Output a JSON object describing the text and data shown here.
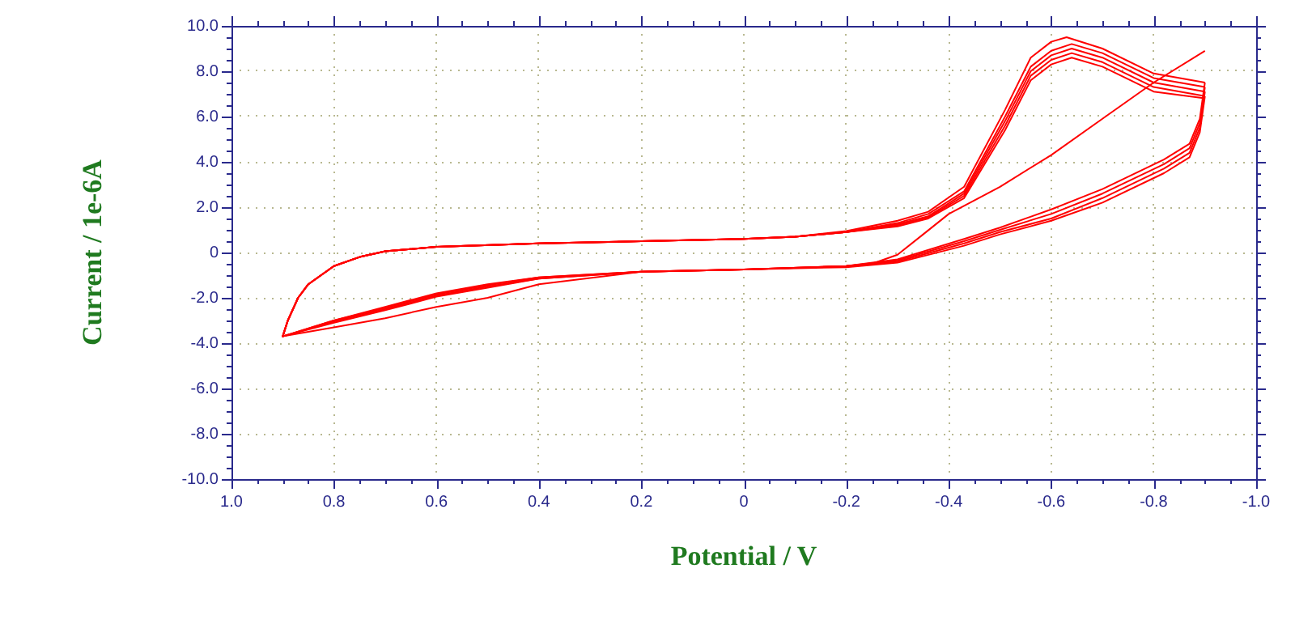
{
  "chart_data": {
    "type": "line",
    "xlabel": "Potential / V",
    "ylabel": "Current / 1e-6A",
    "xlim": [
      1.0,
      -1.0
    ],
    "ylim": [
      -10.0,
      10.0
    ],
    "xticks": [
      {
        "value": 1.0,
        "label": "1.0"
      },
      {
        "value": 0.95,
        "label": null
      },
      {
        "value": 0.9,
        "label": null
      },
      {
        "value": 0.85,
        "label": null
      },
      {
        "value": 0.8,
        "label": "0.8"
      },
      {
        "value": 0.75,
        "label": null
      },
      {
        "value": 0.7,
        "label": null
      },
      {
        "value": 0.65,
        "label": null
      },
      {
        "value": 0.6,
        "label": "0.6"
      },
      {
        "value": 0.55,
        "label": null
      },
      {
        "value": 0.5,
        "label": null
      },
      {
        "value": 0.45,
        "label": null
      },
      {
        "value": 0.4,
        "label": "0.4"
      },
      {
        "value": 0.35,
        "label": null
      },
      {
        "value": 0.3,
        "label": null
      },
      {
        "value": 0.25,
        "label": null
      },
      {
        "value": 0.2,
        "label": "0.2"
      },
      {
        "value": 0.15,
        "label": null
      },
      {
        "value": 0.1,
        "label": null
      },
      {
        "value": 0.05,
        "label": null
      },
      {
        "value": 0,
        "label": "0"
      },
      {
        "value": -0.05,
        "label": null
      },
      {
        "value": -0.1,
        "label": null
      },
      {
        "value": -0.15,
        "label": null
      },
      {
        "value": -0.2,
        "label": "-0.2"
      },
      {
        "value": -0.25,
        "label": null
      },
      {
        "value": -0.3,
        "label": null
      },
      {
        "value": -0.35,
        "label": null
      },
      {
        "value": -0.4,
        "label": "-0.4"
      },
      {
        "value": -0.45,
        "label": null
      },
      {
        "value": -0.5,
        "label": null
      },
      {
        "value": -0.55,
        "label": null
      },
      {
        "value": -0.6,
        "label": "-0.6"
      },
      {
        "value": -0.65,
        "label": null
      },
      {
        "value": -0.7,
        "label": null
      },
      {
        "value": -0.75,
        "label": null
      },
      {
        "value": -0.8,
        "label": "-0.8"
      },
      {
        "value": -0.85,
        "label": null
      },
      {
        "value": -0.9,
        "label": null
      },
      {
        "value": -0.95,
        "label": null
      },
      {
        "value": -1.0,
        "label": "-1.0"
      }
    ],
    "yticks": [
      {
        "value": -10,
        "label": "-10.0"
      },
      {
        "value": -9.5,
        "label": null
      },
      {
        "value": -9,
        "label": null
      },
      {
        "value": -8.5,
        "label": null
      },
      {
        "value": -8,
        "label": "-8.0"
      },
      {
        "value": -7.5,
        "label": null
      },
      {
        "value": -7,
        "label": null
      },
      {
        "value": -6.5,
        "label": null
      },
      {
        "value": -6,
        "label": "-6.0"
      },
      {
        "value": -5.5,
        "label": null
      },
      {
        "value": -5,
        "label": null
      },
      {
        "value": -4.5,
        "label": null
      },
      {
        "value": -4,
        "label": "-4.0"
      },
      {
        "value": -3.5,
        "label": null
      },
      {
        "value": -3,
        "label": null
      },
      {
        "value": -2.5,
        "label": null
      },
      {
        "value": -2,
        "label": "-2.0"
      },
      {
        "value": -1.5,
        "label": null
      },
      {
        "value": -1,
        "label": null
      },
      {
        "value": -0.5,
        "label": null
      },
      {
        "value": 0,
        "label": "0"
      },
      {
        "value": 0.5,
        "label": null
      },
      {
        "value": 1,
        "label": null
      },
      {
        "value": 1.5,
        "label": null
      },
      {
        "value": 2,
        "label": "2.0"
      },
      {
        "value": 2.5,
        "label": null
      },
      {
        "value": 3,
        "label": null
      },
      {
        "value": 3.5,
        "label": null
      },
      {
        "value": 4,
        "label": "4.0"
      },
      {
        "value": 4.5,
        "label": null
      },
      {
        "value": 5,
        "label": null
      },
      {
        "value": 5.5,
        "label": null
      },
      {
        "value": 6,
        "label": "6.0"
      },
      {
        "value": 6.5,
        "label": null
      },
      {
        "value": 7,
        "label": null
      },
      {
        "value": 7.5,
        "label": null
      },
      {
        "value": 8,
        "label": "8.0"
      },
      {
        "value": 8.5,
        "label": null
      },
      {
        "value": 9,
        "label": null
      },
      {
        "value": 9.5,
        "label": null
      },
      {
        "value": 10,
        "label": "10.0"
      }
    ],
    "grid": true,
    "legend": false,
    "marker": "none",
    "line_style": "solid",
    "series": [
      {
        "color": "#ff0000",
        "x": [
          -0.9,
          -0.8,
          -0.7,
          -0.6,
          -0.5,
          -0.45,
          -0.4,
          -0.35,
          -0.3,
          -0.25,
          -0.2,
          0,
          0.2,
          0.4,
          0.5,
          0.6,
          0.7,
          0.8,
          0.9,
          0.89,
          0.87,
          0.85,
          0.8,
          0.75,
          0.7,
          0.6,
          0.4,
          0.2,
          0,
          -0.1,
          -0.2,
          -0.3,
          -0.36,
          -0.43,
          -0.51,
          -0.56,
          -0.6,
          -0.63,
          -0.7,
          -0.8,
          -0.9
        ],
        "values": [
          8.9,
          7.5,
          5.9,
          4.3,
          2.9,
          2.3,
          1.7,
          0.8,
          -0.1,
          -0.5,
          -0.6,
          -0.75,
          -0.85,
          -1.4,
          -2.0,
          -2.4,
          -2.9,
          -3.3,
          -3.7,
          -3.0,
          -2.0,
          -1.4,
          -0.6,
          -0.2,
          0.05,
          0.25,
          0.4,
          0.5,
          0.6,
          0.7,
          0.95,
          1.4,
          1.8,
          2.9,
          6.3,
          8.6,
          9.3,
          9.5,
          9.0,
          7.9,
          7.5
        ]
      },
      {
        "color": "#ff0000",
        "x": [
          -0.9,
          -0.89,
          -0.87,
          -0.82,
          -0.7,
          -0.6,
          -0.5,
          -0.43,
          -0.3,
          -0.2,
          0,
          0.2,
          0.4,
          0.5,
          0.6,
          0.7,
          0.8,
          0.9,
          0.89,
          0.87,
          0.85,
          0.8,
          0.75,
          0.7,
          0.6,
          0.4,
          0.2,
          0,
          -0.1,
          -0.2,
          -0.3,
          -0.36,
          -0.43,
          -0.51,
          -0.56,
          -0.6,
          -0.64,
          -0.7,
          -0.8,
          -0.9
        ],
        "values": [
          7.5,
          5.9,
          4.8,
          4.1,
          2.8,
          1.9,
          1.1,
          0.6,
          -0.3,
          -0.6,
          -0.75,
          -0.85,
          -1.1,
          -1.4,
          -1.8,
          -2.4,
          -3.0,
          -3.7,
          -3.0,
          -2.0,
          -1.4,
          -0.6,
          -0.2,
          0.05,
          0.25,
          0.4,
          0.5,
          0.6,
          0.7,
          0.9,
          1.3,
          1.7,
          2.7,
          6.0,
          8.2,
          8.9,
          9.2,
          8.8,
          7.7,
          7.3
        ]
      },
      {
        "color": "#ff0000",
        "x": [
          -0.9,
          -0.89,
          -0.87,
          -0.82,
          -0.7,
          -0.6,
          -0.5,
          -0.43,
          -0.3,
          -0.2,
          0,
          0.2,
          0.4,
          0.5,
          0.6,
          0.7,
          0.8,
          0.9,
          0.89,
          0.87,
          0.85,
          0.8,
          0.75,
          0.7,
          0.6,
          0.4,
          0.2,
          0,
          -0.1,
          -0.2,
          -0.3,
          -0.36,
          -0.43,
          -0.51,
          -0.56,
          -0.6,
          -0.64,
          -0.7,
          -0.8,
          -0.9
        ],
        "values": [
          7.3,
          5.7,
          4.6,
          3.9,
          2.6,
          1.7,
          1.0,
          0.5,
          -0.35,
          -0.6,
          -0.75,
          -0.85,
          -1.1,
          -1.45,
          -1.85,
          -2.45,
          -3.0,
          -3.7,
          -3.0,
          -2.0,
          -1.4,
          -0.6,
          -0.2,
          0.05,
          0.25,
          0.4,
          0.5,
          0.6,
          0.7,
          0.9,
          1.25,
          1.6,
          2.6,
          5.8,
          8.0,
          8.7,
          9.0,
          8.6,
          7.5,
          7.1
        ]
      },
      {
        "color": "#ff0000",
        "x": [
          -0.9,
          -0.89,
          -0.87,
          -0.82,
          -0.7,
          -0.6,
          -0.5,
          -0.43,
          -0.3,
          -0.2,
          0,
          0.2,
          0.4,
          0.5,
          0.6,
          0.7,
          0.8,
          0.9,
          0.89,
          0.87,
          0.85,
          0.8,
          0.75,
          0.7,
          0.6,
          0.4,
          0.2,
          0,
          -0.1,
          -0.2,
          -0.3,
          -0.36,
          -0.43,
          -0.51,
          -0.56,
          -0.6,
          -0.64,
          -0.7,
          -0.8,
          -0.9
        ],
        "values": [
          7.1,
          5.5,
          4.4,
          3.7,
          2.4,
          1.5,
          0.9,
          0.4,
          -0.4,
          -0.6,
          -0.75,
          -0.85,
          -1.15,
          -1.5,
          -1.9,
          -2.5,
          -3.05,
          -3.7,
          -3.0,
          -2.0,
          -1.4,
          -0.6,
          -0.2,
          0.05,
          0.25,
          0.4,
          0.5,
          0.6,
          0.7,
          0.9,
          1.2,
          1.55,
          2.5,
          5.6,
          7.8,
          8.5,
          8.8,
          8.4,
          7.3,
          6.9
        ]
      },
      {
        "color": "#ff0000",
        "x": [
          -0.9,
          -0.89,
          -0.87,
          -0.82,
          -0.7,
          -0.6,
          -0.5,
          -0.43,
          -0.3,
          -0.2,
          0,
          0.2,
          0.4,
          0.5,
          0.6,
          0.7,
          0.8,
          0.9,
          0.89,
          0.87,
          0.85,
          0.8,
          0.75,
          0.7,
          0.6,
          0.4,
          0.2,
          0,
          -0.1,
          -0.2,
          -0.3,
          -0.36,
          -0.43,
          -0.51,
          -0.56,
          -0.6,
          -0.64,
          -0.7,
          -0.8,
          -0.9
        ],
        "values": [
          6.9,
          5.3,
          4.2,
          3.5,
          2.2,
          1.4,
          0.8,
          0.3,
          -0.45,
          -0.65,
          -0.75,
          -0.85,
          -1.15,
          -1.55,
          -1.95,
          -2.55,
          -3.1,
          -3.7,
          -3.0,
          -2.0,
          -1.4,
          -0.6,
          -0.2,
          0.05,
          0.25,
          0.4,
          0.5,
          0.6,
          0.7,
          0.9,
          1.15,
          1.5,
          2.4,
          5.4,
          7.6,
          8.3,
          8.6,
          8.2,
          7.1,
          6.8
        ]
      }
    ]
  }
}
